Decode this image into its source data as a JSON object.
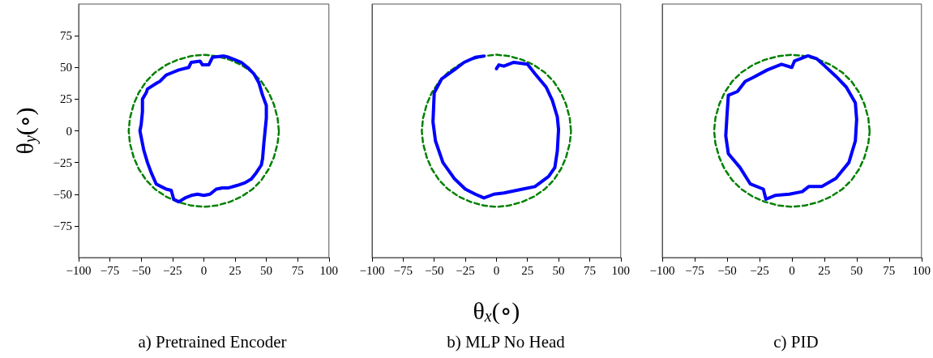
{
  "chart_data": [
    {
      "type": "line",
      "title": "a) Pretrained Encoder",
      "ylabel": "θ$_{y}$(∘)",
      "xlim": [
        -100,
        100
      ],
      "ylim": [
        -100,
        100
      ],
      "xticks": [
        -100,
        -75,
        -50,
        -25,
        0,
        25,
        50,
        75,
        100
      ],
      "yticks": [
        -75,
        -50,
        -25,
        0,
        25,
        50,
        75
      ],
      "grid": false,
      "series": [
        {
          "color": "#0000ff",
          "line_style": "solid",
          "x": [
            15,
            7,
            4,
            -1,
            -3,
            -10,
            -12,
            -20,
            -25,
            -30,
            -35,
            -37,
            -45,
            -46,
            -49,
            -49,
            -50,
            -51,
            -50,
            -48,
            -45,
            -42,
            -38,
            -34,
            -30,
            -26,
            -24,
            -20,
            -15,
            -10,
            -5,
            0,
            5,
            10,
            15,
            20,
            27,
            33,
            38,
            42,
            46,
            47,
            48,
            49,
            50,
            50,
            47,
            44,
            40,
            35,
            30,
            25,
            20,
            16
          ],
          "values": [
            59,
            58,
            52,
            52,
            55,
            54,
            50,
            48,
            46,
            44,
            39,
            38,
            33,
            30,
            25,
            15,
            5,
            0,
            -5,
            -15,
            -25,
            -33,
            -42,
            -44,
            -46,
            -47,
            -54,
            -56,
            -53,
            -51,
            -50,
            -51,
            -50,
            -46,
            -45,
            -45,
            -43,
            -41,
            -38,
            -33,
            -27,
            -22,
            -10,
            0,
            10,
            20,
            28,
            38,
            45,
            50,
            54,
            56,
            58,
            59
          ]
        },
        {
          "color": "#008000",
          "line_style": "dashed",
          "x": [
            60,
            59,
            56,
            52,
            46,
            39,
            30,
            21,
            10,
            0,
            -10,
            -21,
            -30,
            -39,
            -46,
            -52,
            -56,
            -59,
            -60,
            -59,
            -56,
            -52,
            -46,
            -39,
            -30,
            -21,
            -10,
            0,
            10,
            21,
            30,
            39,
            46,
            52,
            56,
            59,
            60
          ],
          "values": [
            0,
            10,
            21,
            30,
            39,
            46,
            52,
            56,
            59,
            60,
            59,
            56,
            52,
            46,
            39,
            30,
            21,
            10,
            0,
            -10,
            -21,
            -30,
            -39,
            -46,
            -52,
            -56,
            -59,
            -60,
            -59,
            -56,
            -52,
            -46,
            -39,
            -30,
            -21,
            -10,
            -1
          ]
        }
      ]
    },
    {
      "type": "line",
      "title": "b) MLP No Head",
      "xlabel": "θ$_{x}$(∘)",
      "xlim": [
        -100,
        100
      ],
      "ylim": [
        -100,
        100
      ],
      "xticks": [
        -100,
        -75,
        -50,
        -25,
        0,
        25,
        50,
        75,
        100
      ],
      "tick_labels": "x",
      "grid": false,
      "series": [
        {
          "color": "#0000ff",
          "line_style": "solid",
          "x": [
            0,
            2,
            6,
            14,
            25,
            31,
            40,
            45,
            49,
            50,
            49,
            47,
            42,
            31,
            21,
            6,
            -2,
            -10,
            -17,
            -25,
            -34,
            -43,
            -49,
            -51,
            -50,
            -44,
            -34,
            -26,
            -17,
            -10
          ],
          "values": [
            49,
            52,
            51,
            54,
            52.5,
            45,
            34.5,
            24,
            11,
            1,
            -16,
            -29,
            -36,
            -44,
            -46,
            -49,
            -50,
            -53,
            -50,
            -46,
            -37.5,
            -25,
            -8,
            7,
            30,
            41,
            48,
            54,
            58,
            59
          ]
        },
        {
          "color": "#008000",
          "line_style": "dashed",
          "x": [
            60,
            59,
            56,
            52,
            46,
            39,
            30,
            21,
            10,
            0,
            -10,
            -21,
            -30,
            -39,
            -46,
            -52,
            -56,
            -59,
            -60,
            -59,
            -56,
            -52,
            -46,
            -39,
            -30,
            -21,
            -10,
            0,
            10,
            21,
            30,
            39,
            46,
            52,
            56,
            59,
            60
          ],
          "values": [
            0,
            10,
            21,
            30,
            39,
            46,
            52,
            56,
            59,
            60,
            59,
            56,
            52,
            46,
            39,
            30,
            21,
            10,
            0,
            -10,
            -21,
            -30,
            -39,
            -46,
            -52,
            -56,
            -59,
            -60,
            -59,
            -56,
            -52,
            -46,
            -39,
            -30,
            -21,
            -10,
            -1
          ]
        }
      ]
    },
    {
      "type": "line",
      "title": "c) PID",
      "xlim": [
        -100,
        100
      ],
      "ylim": [
        -100,
        100
      ],
      "xticks": [
        -100,
        -75,
        -50,
        -25,
        0,
        25,
        50,
        75,
        100
      ],
      "tick_labels": "x",
      "grid": false,
      "series": [
        {
          "color": "#0000ff",
          "line_style": "solid",
          "x": [
            12,
            2,
            0,
            -8,
            -19,
            -30,
            -36,
            -42,
            -49,
            -50,
            -51,
            -49,
            -40,
            -32,
            -22,
            -20,
            -13,
            -2,
            8,
            13,
            23,
            34,
            44,
            49,
            50,
            49,
            42,
            34,
            25,
            19,
            13
          ],
          "values": [
            59,
            55,
            50,
            52.5,
            48,
            42,
            39,
            31,
            28,
            13,
            -4,
            -18,
            -29,
            -42,
            -46,
            -54,
            -51,
            -50,
            -48,
            -44,
            -44,
            -37.5,
            -25,
            -8,
            9,
            22,
            34.5,
            43,
            51.5,
            57,
            59
          ]
        },
        {
          "color": "#008000",
          "line_style": "dashed",
          "x": [
            60,
            59,
            56,
            52,
            46,
            39,
            30,
            21,
            10,
            0,
            -10,
            -21,
            -30,
            -39,
            -46,
            -52,
            -56,
            -59,
            -60,
            -59,
            -56,
            -52,
            -46,
            -39,
            -30,
            -21,
            -10,
            0,
            10,
            21,
            30,
            39,
            46,
            52,
            56,
            59,
            60
          ],
          "values": [
            0,
            10,
            21,
            30,
            39,
            46,
            52,
            56,
            59,
            60,
            59,
            56,
            52,
            46,
            39,
            30,
            21,
            10,
            0,
            -10,
            -21,
            -30,
            -39,
            -46,
            -52,
            -56,
            -59,
            -60,
            -59,
            -56,
            -52,
            -46,
            -39,
            -30,
            -21,
            -10,
            -1
          ]
        }
      ]
    }
  ]
}
